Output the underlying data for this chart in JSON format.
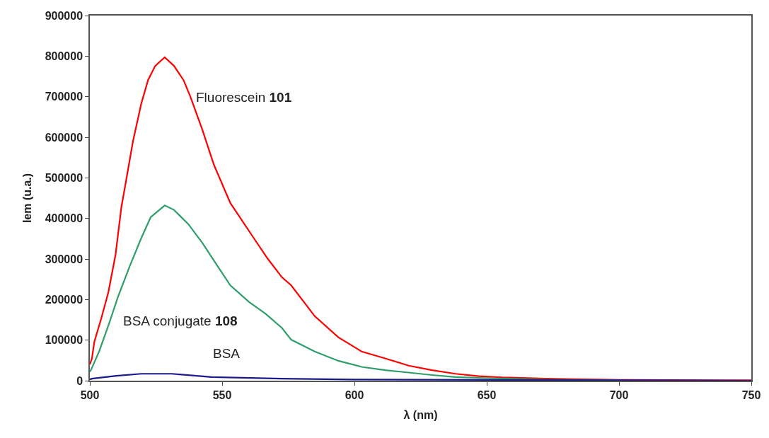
{
  "chart_data": {
    "type": "line",
    "xlabel": "λ (nm)",
    "ylabel": "Iem (u.a.)",
    "xlim": [
      500,
      750
    ],
    "xticks": [
      500,
      550,
      600,
      650,
      700,
      750
    ],
    "ylim": [
      0,
      900000
    ],
    "yticks": [
      0,
      100000,
      200000,
      300000,
      400000,
      500000,
      600000,
      700000,
      800000,
      900000
    ],
    "legend": false,
    "series": [
      {
        "name": "Fluorescein 101",
        "color": "#ff0000",
        "x": [
          500,
          500.8,
          501.7,
          504.3,
          507,
          509.7,
          511.9,
          514.1,
          516.3,
          519.4,
          522,
          524.7,
          528.3,
          531.8,
          535.4,
          538,
          542.5,
          546.9,
          553.1,
          562,
          567.3,
          572.6,
          576.1,
          585,
          593.9,
          602.7,
          611.6,
          620.5,
          629.3,
          638.2,
          647.1,
          655.9,
          680,
          700,
          750
        ],
        "values": [
          40000,
          55000,
          96000,
          153000,
          218000,
          310000,
          427000,
          508000,
          590000,
          682000,
          741000,
          776000,
          797000,
          776000,
          741000,
          700000,
          619000,
          532000,
          438000,
          351000,
          300000,
          255000,
          235000,
          159000,
          107000,
          72000,
          55000,
          37000,
          26000,
          17000,
          11000,
          8000,
          4000,
          2000,
          1000
        ]
      },
      {
        "name": "BSA conjugate 108",
        "color": "#2e9e6b",
        "x": [
          500,
          500.4,
          503.5,
          507,
          510.6,
          515,
          519.4,
          523,
          528.3,
          531.8,
          537.2,
          542.5,
          547.8,
          553.1,
          560.2,
          566.4,
          572.6,
          576.1,
          585,
          593.9,
          602.7,
          611.6,
          620.5,
          629.3,
          638.2,
          647.1,
          670,
          700
        ],
        "values": [
          22000,
          26000,
          72000,
          136000,
          206000,
          281000,
          351000,
          403000,
          432000,
          421000,
          386000,
          340000,
          287000,
          235000,
          194000,
          165000,
          130000,
          101000,
          72000,
          49000,
          34000,
          26000,
          20000,
          14000,
          9000,
          7000,
          3000,
          1000
        ]
      },
      {
        "name": "BSA",
        "color": "#1a1a8c",
        "x": [
          500,
          500.8,
          510,
          519.4,
          531,
          546,
          572.6,
          600,
          650,
          700,
          750
        ],
        "values": [
          3000,
          5000,
          12000,
          17000,
          17000,
          9000,
          5000,
          3000,
          2000,
          1000,
          0
        ]
      }
    ]
  }
}
